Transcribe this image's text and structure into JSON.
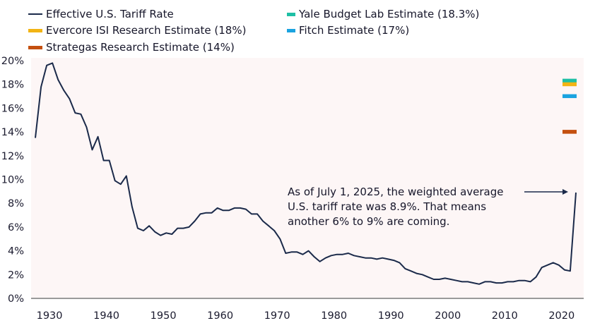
{
  "legend": [
    {
      "label": "Effective U.S. Tariff Rate",
      "color": "#1b2a4a",
      "kind": "line"
    },
    {
      "label": "Evercore ISI Research Estimate (18%)",
      "color": "#f2b414",
      "kind": "bar"
    },
    {
      "label": "Strategas Research Estimate (14%)",
      "color": "#c4500f",
      "kind": "bar"
    },
    {
      "label": "Yale Budget Lab Estimate (18.3%)",
      "color": "#1ebfa5",
      "kind": "bar"
    },
    {
      "label": "Fitch Estimate (17%)",
      "color": "#1aa3e0",
      "kind": "bar"
    }
  ],
  "annotation": {
    "text": "As of July 1, 2025, the weighted average U.S. tariff rate was 8.9%. That means another 6% to 9% are coming."
  },
  "chart_data": {
    "type": "line",
    "title": "",
    "xlabel": "",
    "ylabel": "",
    "ylim": [
      0,
      20
    ],
    "yticks": [
      "0%",
      "2%",
      "4%",
      "6%",
      "8%",
      "10%",
      "12%",
      "14%",
      "16%",
      "18%",
      "20%"
    ],
    "xticks": [
      "1930",
      "1940",
      "1950",
      "1960",
      "1970",
      "1980",
      "1990",
      "2000",
      "2010",
      "2020"
    ],
    "grid": false,
    "legend_position": "top",
    "plot_background": "#fdf6f6",
    "series": [
      {
        "name": "Effective U.S. Tariff Rate",
        "color": "#1b2a4a",
        "x": [
          1929,
          1930,
          1931,
          1932,
          1933,
          1934,
          1935,
          1936,
          1937,
          1938,
          1939,
          1940,
          1941,
          1942,
          1943,
          1944,
          1945,
          1946,
          1947,
          1948,
          1949,
          1950,
          1951,
          1952,
          1953,
          1954,
          1955,
          1956,
          1957,
          1958,
          1959,
          1960,
          1961,
          1962,
          1963,
          1964,
          1965,
          1966,
          1967,
          1968,
          1969,
          1970,
          1971,
          1972,
          1973,
          1974,
          1975,
          1976,
          1977,
          1978,
          1979,
          1980,
          1981,
          1982,
          1983,
          1984,
          1985,
          1986,
          1987,
          1988,
          1989,
          1990,
          1991,
          1992,
          1993,
          1994,
          1995,
          1996,
          1997,
          1998,
          1999,
          2000,
          2001,
          2002,
          2003,
          2004,
          2005,
          2006,
          2007,
          2008,
          2009,
          2010,
          2011,
          2012,
          2013,
          2014,
          2015,
          2016,
          2017,
          2018,
          2019,
          2020,
          2021,
          2022,
          2023,
          2025
        ],
        "values": [
          13.5,
          17.8,
          19.6,
          19.8,
          18.4,
          17.5,
          16.8,
          15.6,
          15.5,
          14.4,
          12.5,
          13.6,
          11.6,
          11.6,
          9.9,
          9.6,
          10.3,
          7.7,
          5.9,
          5.7,
          6.1,
          5.6,
          5.3,
          5.5,
          5.4,
          5.9,
          5.9,
          6.0,
          6.5,
          7.1,
          7.2,
          7.2,
          7.6,
          7.4,
          7.4,
          7.6,
          7.6,
          7.5,
          7.1,
          7.1,
          6.5,
          6.1,
          5.7,
          5.0,
          3.8,
          3.9,
          3.9,
          3.7,
          4.0,
          3.5,
          3.1,
          3.4,
          3.6,
          3.7,
          3.7,
          3.8,
          3.6,
          3.5,
          3.4,
          3.4,
          3.3,
          3.4,
          3.3,
          3.2,
          3.0,
          2.5,
          2.3,
          2.1,
          2.0,
          1.8,
          1.6,
          1.6,
          1.7,
          1.6,
          1.5,
          1.4,
          1.4,
          1.3,
          1.2,
          1.4,
          1.4,
          1.3,
          1.3,
          1.4,
          1.4,
          1.5,
          1.5,
          1.4,
          1.8,
          2.6,
          2.8,
          3.0,
          2.8,
          2.4,
          2.3,
          8.9
        ]
      }
    ],
    "estimates": [
      {
        "name": "Yale Budget Lab Estimate",
        "value": 18.3,
        "color": "#1ebfa5"
      },
      {
        "name": "Evercore ISI Research Estimate",
        "value": 18.0,
        "color": "#f2b414"
      },
      {
        "name": "Fitch Estimate",
        "value": 17.0,
        "color": "#1aa3e0"
      },
      {
        "name": "Strategas Research Estimate",
        "value": 14.0,
        "color": "#c4500f"
      }
    ]
  }
}
